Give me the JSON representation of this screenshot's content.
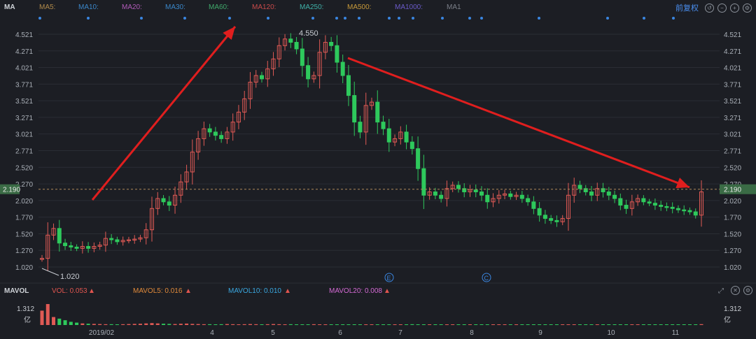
{
  "toolbar": {
    "indicator": "MA",
    "ma_items": [
      {
        "label": "MA5:",
        "color": "#b08a4a"
      },
      {
        "label": "MA10:",
        "color": "#3a86c8"
      },
      {
        "label": "MA20:",
        "color": "#b05ab8"
      },
      {
        "label": "MA30:",
        "color": "#3a86c8"
      },
      {
        "label": "MA60:",
        "color": "#3fa86a"
      },
      {
        "label": "MA120:",
        "color": "#c84a4a"
      },
      {
        "label": "MA250:",
        "color": "#3fb0a8"
      },
      {
        "label": "MA500:",
        "color": "#c89a3a"
      },
      {
        "label": "MA1000:",
        "color": "#6a5ac8"
      },
      {
        "label": "MA1",
        "color": "#7a7f88"
      }
    ],
    "adjust_label": "前复权",
    "icons": [
      "undo-icon",
      "minus-icon",
      "plus-icon",
      "gear-icon"
    ]
  },
  "volume_panel": {
    "indicator": "MAVOL",
    "vol": "VOL: 0.053",
    "mavol5": "MAVOL5: 0.016",
    "mavol10": "MAVOL10: 0.010",
    "mavol20": "MAVOL20: 0.008",
    "colors": {
      "vol": "#e0554f",
      "mavol5": "#e08a3a",
      "mavol10": "#3aa8e0",
      "mavol20": "#d46ad4"
    },
    "max_label": "1.312",
    "unit_label": "亿",
    "icons": [
      "expand-icon",
      "close-icon"
    ]
  },
  "chart_data": {
    "type": "candlestick",
    "y_ticks": [
      "4.521",
      "4.271",
      "4.021",
      "3.771",
      "3.521",
      "3.271",
      "3.021",
      "2.771",
      "2.520",
      "2.270",
      "2.020",
      "1.770",
      "1.520",
      "1.270",
      "1.020"
    ],
    "ylim": [
      1.02,
      4.521
    ],
    "x_ticks": [
      "2019/02",
      "4",
      "5",
      "6",
      "7",
      "8",
      "9",
      "10",
      "11"
    ],
    "current_price": "2.190",
    "high_label": "4.550",
    "low_label": "1.020",
    "event_markers": [
      "E",
      "C"
    ],
    "colors": {
      "up": "#e05a55",
      "down": "#2ec95c",
      "grid": "#2a2d34",
      "arrow": "#e01e1e",
      "price_line": "#b08a5a",
      "price_tag": "#3a6b45"
    },
    "price_series": [
      1.15,
      1.5,
      1.6,
      1.38,
      1.34,
      1.32,
      1.3,
      1.33,
      1.3,
      1.33,
      1.35,
      1.45,
      1.43,
      1.4,
      1.42,
      1.43,
      1.44,
      1.46,
      1.58,
      1.9,
      2.05,
      2.0,
      1.95,
      2.1,
      2.3,
      2.45,
      2.75,
      2.95,
      3.1,
      3.05,
      3.0,
      2.95,
      3.05,
      3.2,
      3.35,
      3.55,
      3.8,
      3.9,
      3.85,
      4.0,
      4.15,
      4.35,
      4.45,
      4.4,
      4.3,
      4.05,
      3.85,
      3.9,
      4.25,
      4.4,
      4.35,
      4.1,
      3.9,
      3.6,
      3.2,
      3.05,
      3.45,
      3.5,
      3.2,
      3.1,
      2.9,
      2.95,
      3.05,
      2.9,
      2.8,
      2.5,
      2.1,
      2.15,
      2.1,
      2.05,
      2.2,
      2.25,
      2.2,
      2.15,
      2.18,
      2.15,
      2.1,
      2.0,
      2.05,
      2.1,
      2.12,
      2.08,
      2.1,
      2.05,
      2.0,
      1.9,
      1.8,
      1.75,
      1.72,
      1.7,
      1.75,
      2.1,
      2.25,
      2.2,
      2.15,
      2.1,
      2.2,
      2.15,
      2.1,
      2.05,
      1.95,
      1.9,
      2.0,
      2.05,
      2.0,
      1.98,
      1.95,
      1.93,
      1.92,
      1.9,
      1.88,
      1.87,
      1.85,
      1.8,
      2.15
    ],
    "volume_series": [
      0.9,
      1.312,
      0.5,
      0.4,
      0.3,
      0.2,
      0.15,
      0.1,
      0.08,
      0.07,
      0.06,
      0.05,
      0.05,
      0.04,
      0.05,
      0.06,
      0.07,
      0.08,
      0.1,
      0.12,
      0.1,
      0.08,
      0.07,
      0.06,
      0.08,
      0.09,
      0.07,
      0.06,
      0.05,
      0.05,
      0.04,
      0.05,
      0.06,
      0.05,
      0.04,
      0.05,
      0.06,
      0.05,
      0.04,
      0.05,
      0.06,
      0.05,
      0.04,
      0.05,
      0.04,
      0.03,
      0.04,
      0.05,
      0.04,
      0.03,
      0.04,
      0.03,
      0.03,
      0.04,
      0.03,
      0.03,
      0.04,
      0.03,
      0.03,
      0.02,
      0.03,
      0.03,
      0.02,
      0.03,
      0.05,
      0.04,
      0.03,
      0.03,
      0.02,
      0.02,
      0.03,
      0.02,
      0.02,
      0.03,
      0.02,
      0.02,
      0.02,
      0.02,
      0.03,
      0.02,
      0.02,
      0.02,
      0.02,
      0.02,
      0.02,
      0.03,
      0.02,
      0.02,
      0.02,
      0.02,
      0.03,
      0.04,
      0.03,
      0.02,
      0.02,
      0.02,
      0.02,
      0.02,
      0.02,
      0.02,
      0.02,
      0.02,
      0.02,
      0.02,
      0.02,
      0.02,
      0.02,
      0.02,
      0.02,
      0.02,
      0.02,
      0.02,
      0.02,
      0.02,
      0.053
    ]
  }
}
